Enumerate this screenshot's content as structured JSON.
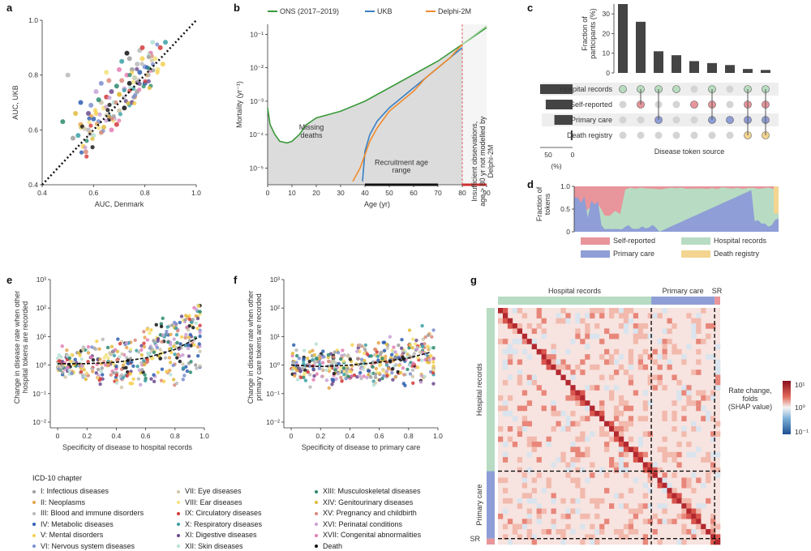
{
  "panels": {
    "a": {
      "letter": "a"
    },
    "b": {
      "letter": "b"
    },
    "c": {
      "letter": "c"
    },
    "d": {
      "letter": "d"
    },
    "e": {
      "letter": "e"
    },
    "f": {
      "letter": "f"
    },
    "g": {
      "letter": "g"
    }
  },
  "chart_data": [
    {
      "id": "a",
      "type": "scatter",
      "xlabel": "AUC, Denmark",
      "ylabel": "AUC, UKB",
      "xlim": [
        0.4,
        1.0
      ],
      "ylim": [
        0.4,
        1.0
      ],
      "xticks": [
        "0.4",
        "0.6",
        "0.8",
        "1.0"
      ],
      "yticks": [
        "0.4",
        "0.6",
        "0.8",
        "1.0"
      ],
      "diagonal": true,
      "points": [
        [
          0.52,
          0.57
        ],
        [
          0.55,
          0.62
        ],
        [
          0.58,
          0.6
        ],
        [
          0.6,
          0.64
        ],
        [
          0.61,
          0.66
        ],
        [
          0.62,
          0.63
        ],
        [
          0.63,
          0.7
        ],
        [
          0.64,
          0.68
        ],
        [
          0.65,
          0.72
        ],
        [
          0.66,
          0.65
        ],
        [
          0.67,
          0.74
        ],
        [
          0.68,
          0.7
        ],
        [
          0.69,
          0.76
        ],
        [
          0.7,
          0.73
        ],
        [
          0.71,
          0.78
        ],
        [
          0.72,
          0.75
        ],
        [
          0.73,
          0.8
        ],
        [
          0.74,
          0.77
        ],
        [
          0.75,
          0.82
        ],
        [
          0.76,
          0.79
        ],
        [
          0.77,
          0.84
        ],
        [
          0.78,
          0.81
        ],
        [
          0.79,
          0.86
        ],
        [
          0.8,
          0.83
        ],
        [
          0.82,
          0.88
        ],
        [
          0.84,
          0.86
        ],
        [
          0.86,
          0.9
        ],
        [
          0.88,
          0.92
        ],
        [
          0.58,
          0.66
        ],
        [
          0.6,
          0.58
        ],
        [
          0.62,
          0.71
        ],
        [
          0.64,
          0.61
        ],
        [
          0.66,
          0.78
        ],
        [
          0.68,
          0.64
        ],
        [
          0.7,
          0.82
        ],
        [
          0.72,
          0.68
        ],
        [
          0.74,
          0.86
        ],
        [
          0.76,
          0.72
        ],
        [
          0.78,
          0.89
        ],
        [
          0.8,
          0.77
        ],
        [
          0.56,
          0.54
        ],
        [
          0.59,
          0.69
        ],
        [
          0.63,
          0.59
        ],
        [
          0.65,
          0.81
        ],
        [
          0.69,
          0.62
        ],
        [
          0.71,
          0.85
        ],
        [
          0.75,
          0.7
        ],
        [
          0.83,
          0.92
        ],
        [
          0.48,
          0.63
        ],
        [
          0.53,
          0.66
        ],
        [
          0.57,
          0.52
        ],
        [
          0.61,
          0.74
        ],
        [
          0.67,
          0.6
        ],
        [
          0.73,
          0.88
        ],
        [
          0.77,
          0.74
        ],
        [
          0.81,
          0.8
        ],
        [
          0.5,
          0.8
        ],
        [
          0.55,
          0.7
        ],
        [
          0.87,
          0.84
        ],
        [
          0.63,
          0.77
        ],
        [
          0.7,
          0.67
        ],
        [
          0.85,
          0.82
        ],
        [
          0.79,
          0.9
        ],
        [
          0.54,
          0.58
        ]
      ]
    },
    {
      "id": "b",
      "type": "line",
      "xlabel": "Age (yr)",
      "ylabel": "Mortality (yr⁻¹)",
      "xlim": [
        0,
        90
      ],
      "ylim_log10": [
        -5.5,
        -0.7
      ],
      "xticks": [
        "0",
        "10",
        "20",
        "30",
        "40",
        "50",
        "60",
        "70",
        "80",
        "90"
      ],
      "yticks": [
        "10⁻⁵",
        "10⁻⁴",
        "10⁻³",
        "10⁻²",
        "10⁻¹"
      ],
      "series": [
        {
          "name": "ONS (2017–2019)",
          "color": "#3a9a3a",
          "x": [
            0,
            1,
            3,
            5,
            8,
            10,
            13,
            16,
            18,
            20,
            25,
            30,
            40,
            50,
            60,
            70,
            80,
            90
          ],
          "log10y": [
            -3.2,
            -3.7,
            -4.0,
            -4.2,
            -4.25,
            -4.2,
            -4.0,
            -3.7,
            -3.6,
            -3.5,
            -3.4,
            -3.3,
            -3.0,
            -2.6,
            -2.2,
            -1.8,
            -1.3,
            -0.8
          ]
        },
        {
          "name": "UKB",
          "color": "#3a7fc4",
          "x": [
            39,
            40,
            42,
            45,
            50,
            55,
            60,
            65,
            70,
            75,
            80
          ],
          "log10y": [
            -5.4,
            -4.5,
            -4.0,
            -3.6,
            -3.2,
            -2.9,
            -2.6,
            -2.3,
            -2.0,
            -1.7,
            -1.4
          ]
        },
        {
          "name": "Delphi-2M",
          "color": "#f08a2c",
          "x": [
            35,
            38,
            40,
            42,
            45,
            50,
            55,
            60,
            65,
            70,
            75,
            80
          ],
          "log10y": [
            -5.4,
            -5.0,
            -4.6,
            -4.2,
            -3.8,
            -3.3,
            -3.0,
            -2.7,
            -2.3,
            -2.0,
            -1.7,
            -1.3
          ]
        }
      ],
      "annotations": {
        "missing": "Missing\ndeaths",
        "recruitment": "Recruitment age\nrange",
        "insufficient": "Insufficient observations,\nage > 80 yr not modelled by\nDelphi-2M"
      }
    },
    {
      "id": "c",
      "type": "bar",
      "ylabel": "Fraction of\nparticipants (%)",
      "yticks": [
        "0",
        "10",
        "20",
        "30"
      ],
      "values": [
        35,
        26,
        11,
        9,
        6,
        5,
        4,
        2,
        1.5
      ],
      "sources": [
        "Hospital records",
        "Self-reported",
        "Primary care",
        "Death registry"
      ],
      "source_bars": [
        75,
        62,
        42,
        4
      ],
      "source_ticks": [
        "50",
        "0"
      ],
      "source_unit": "(%)",
      "xlabel": "Disease token source",
      "matrix": [
        [
          1,
          0,
          0,
          0
        ],
        [
          1,
          1,
          0,
          0
        ],
        [
          1,
          0,
          1,
          0
        ],
        [
          1,
          0,
          0,
          0
        ],
        [
          0,
          1,
          0,
          0
        ],
        [
          1,
          1,
          1,
          0
        ],
        [
          0,
          0,
          1,
          0
        ],
        [
          1,
          1,
          1,
          1
        ],
        [
          1,
          1,
          1,
          1
        ]
      ]
    },
    {
      "id": "d",
      "type": "area",
      "ylabel": "Fraction of\ntokens",
      "yticks": [
        "0",
        "0.5",
        "1.0"
      ],
      "legend": [
        {
          "label": "Self-reported",
          "color": "#e8959b"
        },
        {
          "label": "Hospital records",
          "color": "#b7dcc3"
        },
        {
          "label": "Primary care",
          "color": "#8f9ed6"
        },
        {
          "label": "Death registry",
          "color": "#f3d591"
        }
      ]
    },
    {
      "id": "e",
      "type": "scatter",
      "xlabel": "Specificity of disease to hospital records",
      "ylabel": "Change in disease rate when other\nhospital tokens are recorded",
      "xlim": [
        -0.05,
        1.0
      ],
      "ylim_log10": [
        -2.2,
        3.0
      ],
      "xticks": [
        "0",
        "0.2",
        "0.4",
        "0.6",
        "0.8",
        "1.0"
      ],
      "yticks": [
        "10⁻²",
        "10⁻¹",
        "10⁰",
        "10¹",
        "10²",
        "10³"
      ],
      "trend": {
        "x": [
          0.0,
          0.2,
          0.4,
          0.6,
          0.8,
          0.95
        ],
        "log10y": [
          0.05,
          0.05,
          0.1,
          0.25,
          0.55,
          0.95
        ]
      }
    },
    {
      "id": "f",
      "type": "scatter",
      "xlabel": "Specificity of disease to primary care",
      "ylabel": "Change in disease rate when other\nprimary care tokens are recorded",
      "xlim": [
        -0.05,
        1.0
      ],
      "ylim_log10": [
        -2.2,
        3.0
      ],
      "xticks": [
        "0",
        "0.2",
        "0.4",
        "0.6",
        "0.8",
        "1.0"
      ],
      "yticks": [
        "10⁻²",
        "10⁻¹",
        "10⁰",
        "10¹",
        "10²",
        "10³"
      ],
      "trend": {
        "x": [
          0.0,
          0.2,
          0.4,
          0.6,
          0.8,
          0.95
        ],
        "log10y": [
          0.0,
          -0.05,
          0.0,
          0.1,
          0.25,
          0.45
        ]
      }
    },
    {
      "id": "g",
      "type": "heatmap",
      "col_groups": [
        "Hospital records",
        "Primary care",
        "SR"
      ],
      "row_groups": [
        "Hospital records",
        "Primary care",
        "SR"
      ],
      "colorbar_label": "Rate change,\nfolds\n(SHAP value)",
      "colorbar_ticks": [
        "10¹",
        "10⁰",
        "10⁻¹"
      ]
    }
  ],
  "legend_e": {
    "title": "ICD-10 chapter",
    "items": [
      {
        "label": "I: Infectious diseases",
        "color": "#9e9e9e"
      },
      {
        "label": "II: Neoplasms",
        "color": "#e7a44b"
      },
      {
        "label": "III: Blood and immune disorders",
        "color": "#b9b9b9"
      },
      {
        "label": "IV: Metabolic diseases",
        "color": "#2f5fb0"
      },
      {
        "label": "V: Mental disorders",
        "color": "#f6d04d"
      },
      {
        "label": "VI: Nervous system diseases",
        "color": "#7b8fcf"
      },
      {
        "label": "VII: Eye diseases",
        "color": "#cfc6a8"
      },
      {
        "label": "VIII: Ear diseases",
        "color": "#f3e27a"
      },
      {
        "label": "IX: Circulatory diseases",
        "color": "#d43a3a"
      },
      {
        "label": "X: Respiratory diseases",
        "color": "#3aa0a6"
      },
      {
        "label": "XI: Digestive diseases",
        "color": "#6b4a8e"
      },
      {
        "label": "XII: Skin diseases",
        "color": "#b6e0d6"
      },
      {
        "label": "XIII: Musculoskeletal diseases",
        "color": "#2b8a6e"
      },
      {
        "label": "XIV: Genitourinary diseases",
        "color": "#e0bb3a"
      },
      {
        "label": "XV: Pregnancy and childbirth",
        "color": "#d98a7a"
      },
      {
        "label": "XVI: Perinatal conditions",
        "color": "#c9a0d6"
      },
      {
        "label": "XVII: Congenital abnormalities",
        "color": "#e47fb5"
      },
      {
        "label": "Death",
        "color": "#111111"
      }
    ]
  }
}
